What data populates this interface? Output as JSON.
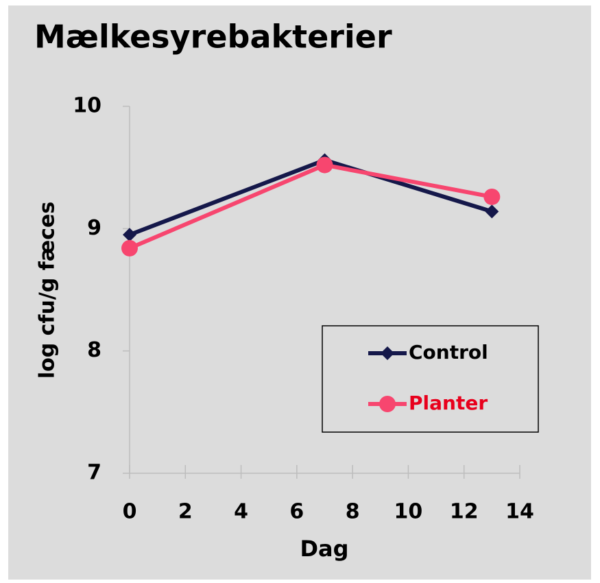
{
  "chart_data": {
    "type": "line",
    "title": "Mælkesyrebakterier",
    "x_label": "Dag",
    "y_label": "log cfu/g fæces",
    "x": [
      0,
      7,
      13
    ],
    "series": [
      {
        "name": "Control",
        "color": "#15184a",
        "label_color": "#000000",
        "marker": "diamond",
        "values": [
          8.95,
          9.56,
          9.14
        ]
      },
      {
        "name": "Planter",
        "color": "#f7466f",
        "label_color": "#e8001c",
        "marker": "circle",
        "values": [
          8.84,
          9.52,
          9.26
        ]
      }
    ],
    "xlim": [
      0,
      14
    ],
    "xticks": [
      0,
      2,
      4,
      6,
      8,
      10,
      12,
      14
    ],
    "ylim": [
      7,
      10
    ],
    "yticks": [
      7,
      8,
      9,
      10
    ],
    "grid": false,
    "legend": "right"
  }
}
